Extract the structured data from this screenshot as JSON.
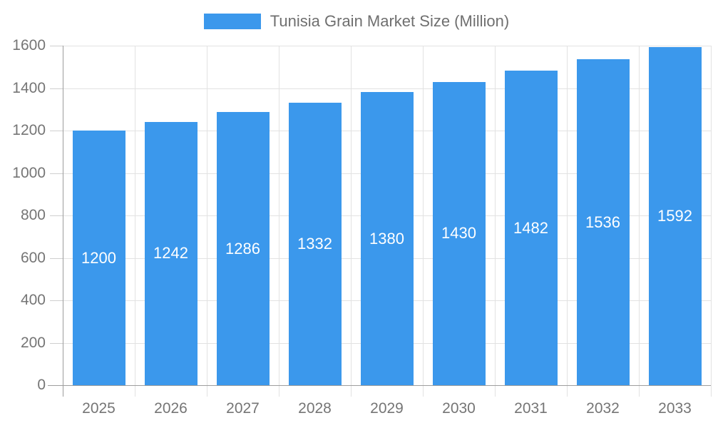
{
  "legend": {
    "label": "Tunisia Grain Market Size (Million)"
  },
  "chart_data": {
    "type": "bar",
    "title": "Tunisia Grain Market Size (Million)",
    "categories": [
      "2025",
      "2026",
      "2027",
      "2028",
      "2029",
      "2030",
      "2031",
      "2032",
      "2033"
    ],
    "values": [
      1200,
      1242,
      1286,
      1332,
      1380,
      1430,
      1482,
      1536,
      1592
    ],
    "value_labels": [
      "1200",
      "1242",
      "1286",
      "1332",
      "1380",
      "1430",
      "1482",
      "1536",
      "1592"
    ],
    "xlabel": "",
    "ylabel": "",
    "ylim": [
      0,
      1600
    ],
    "yticks": [
      0,
      200,
      400,
      600,
      800,
      1000,
      1200,
      1400,
      1600
    ],
    "grid": true,
    "legend_position": "top",
    "colors": {
      "bar": "#3b98ec",
      "grid": "#e2e2e2",
      "axis_line": "#9d9d9d",
      "tick": "#cfcfcf",
      "axis_label": "#757575",
      "value_label": "#ffffff",
      "legend_text": "#6f6f6f"
    }
  }
}
